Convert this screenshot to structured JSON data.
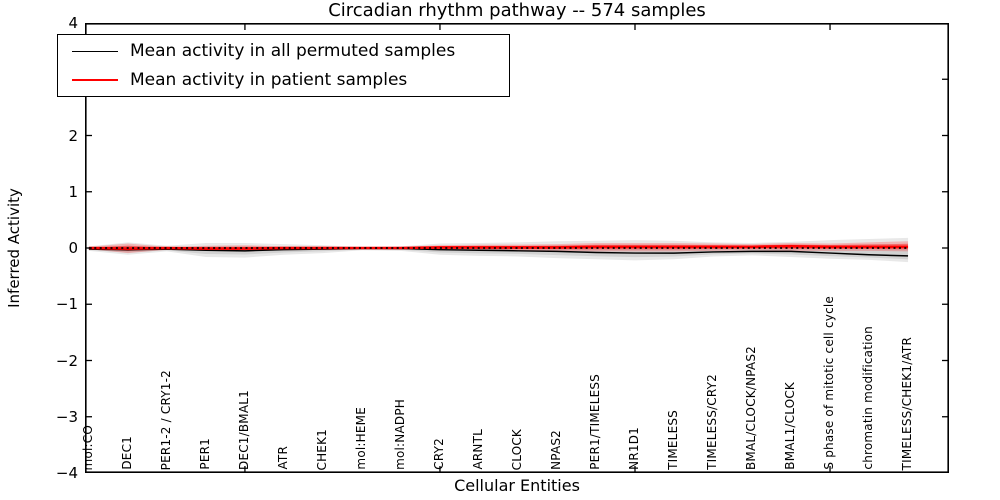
{
  "figure": {
    "background": "#ffffff",
    "frame_color": "#000000"
  },
  "chart_data": {
    "type": "line",
    "title": "Circadian rhythm pathway -- 574 samples",
    "xlabel": "Cellular Entities",
    "ylabel": "Inferred Activity",
    "ylim": [
      -4,
      4
    ],
    "xlim": [
      0.9,
      23.05
    ],
    "grid": false,
    "yticks": {
      "values": [
        4,
        3,
        2,
        1,
        0,
        -1,
        -2,
        -3,
        -4
      ],
      "labels": [
        "4",
        "3",
        "2",
        "1",
        "0",
        "−1",
        "−2",
        "−3",
        "−4"
      ]
    },
    "xticks": {
      "values": [
        5,
        10,
        15,
        20
      ],
      "labels": [
        "",
        "",
        "",
        ""
      ]
    },
    "categories": [
      "mol:CO",
      "DEC1",
      "PER1-2 / CRY1-2",
      "PER1",
      "DEC1/BMAL1",
      "ATR",
      "CHEK1",
      "mol:HEME",
      "mol:NADPH",
      "CRY2",
      "ARNTL",
      "CLOCK",
      "NPAS2",
      "PER1/TIMELESS",
      "NR1D1",
      "TIMELESS",
      "TIMELESS/CRY2",
      "BMAL/CLOCK/NPAS2",
      "BMAL1/CLOCK",
      "S phase of mitotic cell cycle",
      "chromatin modification",
      "TIMELESS/CHEK1/ATR"
    ],
    "series": [
      {
        "name": "Mean activity in all permuted samples",
        "color": "#000000",
        "style": "solid",
        "values": [
          -0.02,
          -0.03,
          -0.02,
          -0.04,
          -0.05,
          -0.03,
          -0.02,
          -0.01,
          -0.01,
          -0.03,
          -0.04,
          -0.05,
          -0.06,
          -0.08,
          -0.09,
          -0.09,
          -0.07,
          -0.06,
          -0.06,
          -0.09,
          -0.12,
          -0.14
        ]
      },
      {
        "name": "Mean activity in patient samples",
        "color": "#ff0000",
        "style": "solid",
        "values": [
          0.0,
          -0.01,
          0.0,
          -0.01,
          -0.01,
          0.0,
          0.0,
          0.0,
          0.0,
          0.01,
          0.01,
          0.01,
          0.01,
          0.02,
          0.02,
          0.02,
          0.02,
          0.02,
          0.03,
          0.02,
          0.02,
          0.02
        ]
      }
    ],
    "bands": [
      {
        "name": "permuted-std-band",
        "color": "#808080",
        "outer_alpha": 0.18,
        "inner_alpha": 0.22,
        "upper": [
          0.03,
          0.1,
          0.04,
          0.09,
          0.09,
          0.07,
          0.05,
          0.02,
          0.03,
          0.08,
          0.09,
          0.1,
          0.12,
          0.13,
          0.14,
          0.13,
          0.1,
          0.09,
          0.11,
          0.14,
          0.16,
          0.18
        ],
        "lower": [
          -0.05,
          -0.12,
          -0.06,
          -0.16,
          -0.17,
          -0.12,
          -0.09,
          -0.04,
          -0.05,
          -0.12,
          -0.14,
          -0.15,
          -0.18,
          -0.2,
          -0.22,
          -0.2,
          -0.15,
          -0.13,
          -0.16,
          -0.19,
          -0.21,
          -0.25
        ],
        "center_series": 0
      },
      {
        "name": "patient-std-band",
        "color": "#ff0000",
        "outer_alpha": 0.22,
        "inner_alpha": 0.42,
        "upper": [
          0.02,
          0.08,
          0.02,
          0.04,
          0.05,
          0.03,
          0.03,
          0.01,
          0.02,
          0.05,
          0.06,
          0.06,
          0.07,
          0.09,
          0.09,
          0.09,
          0.08,
          0.07,
          0.09,
          0.08,
          0.1,
          0.12
        ],
        "lower": [
          -0.02,
          -0.09,
          -0.03,
          -0.05,
          -0.06,
          -0.04,
          -0.03,
          -0.02,
          -0.02,
          -0.04,
          -0.04,
          -0.05,
          -0.05,
          -0.06,
          -0.06,
          -0.06,
          -0.05,
          -0.04,
          -0.05,
          -0.05,
          -0.05,
          -0.06
        ],
        "center_series": 1
      }
    ],
    "zero_line": {
      "value": 0,
      "color": "#000000",
      "style": "dotted"
    },
    "legend": {
      "position": "upper left",
      "entries": [
        {
          "label": "Mean activity in all permuted samples",
          "color": "#000000"
        },
        {
          "label": "Mean activity in patient samples",
          "color": "#ff0000"
        }
      ]
    }
  }
}
